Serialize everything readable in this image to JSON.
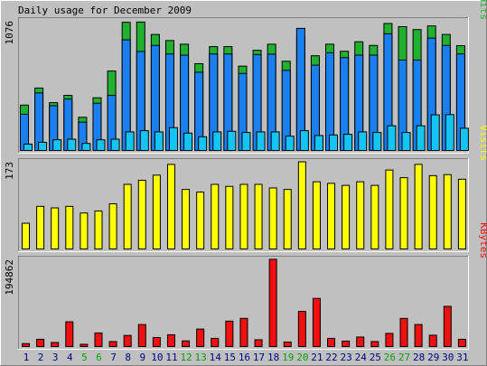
{
  "chart_data": {
    "type": "bar",
    "title": "Daily usage for December 2009",
    "categories": [
      "1",
      "2",
      "3",
      "4",
      "5",
      "6",
      "7",
      "8",
      "9",
      "10",
      "11",
      "12",
      "13",
      "14",
      "15",
      "16",
      "17",
      "18",
      "19",
      "20",
      "21",
      "22",
      "23",
      "24",
      "25",
      "26",
      "27",
      "28",
      "29",
      "30",
      "31"
    ],
    "weekend_days": [
      "5",
      "6",
      "12",
      "13",
      "19",
      "20",
      "26",
      "27"
    ],
    "colors": {
      "background": "#c0c0c0",
      "hits": "#22b02f",
      "files": "#1a80f0",
      "pages": "#14c4f4",
      "visits": "#ffff00",
      "kbytes": "#f01010",
      "weekday_label": "#000080",
      "weekend_label": "#00a000"
    },
    "panels": [
      {
        "name": "pages-files-hits",
        "ymax_label": "1076",
        "ylim": [
          0,
          1076
        ],
        "legend": [
          "Pages",
          "/",
          "Files",
          "/",
          "Hits"
        ],
        "legend_colors": [
          "#14c4f4",
          "#000000",
          "#1a80f0",
          "#000000",
          "#22b02f"
        ],
        "series": [
          {
            "name": "Hits",
            "values": [
              380,
              520,
              400,
              460,
              280,
              440,
              660,
              1060,
              1062,
              960,
              910,
              880,
              720,
              860,
              860,
              700,
              830,
              880,
              740,
              940,
              785,
              880,
              822,
              900,
              870,
              1050,
              1024,
              1000,
              1030,
              960,
              868
            ]
          },
          {
            "name": "Files",
            "values": [
              305,
              480,
              375,
              430,
              240,
              395,
              460,
              916,
              820,
              870,
              800,
              790,
              650,
              800,
              800,
              640,
              795,
              798,
              665,
              1010,
              708,
              810,
              770,
              790,
              790,
              966,
              750,
              750,
              930,
              870,
              800
            ]
          },
          {
            "name": "Pages",
            "values": [
              60,
              75,
              95,
              100,
              65,
              95,
              100,
              160,
              170,
              160,
              195,
              150,
              120,
              160,
              165,
              155,
              160,
              160,
              125,
              170,
              130,
              135,
              140,
              160,
              155,
              210,
              155,
              210,
              300,
              302,
              190
            ]
          }
        ]
      },
      {
        "name": "visits",
        "ymax_label": "173",
        "ylim": [
          0,
          173
        ],
        "legend": [
          "Visits"
        ],
        "legend_colors": [
          "#ffff00"
        ],
        "series": [
          {
            "name": "Visits",
            "values": [
              52,
              85,
              82,
              85,
              72,
              76,
              90,
              128,
              136,
              146,
              167,
              118,
              113,
              128,
              124,
              128,
              128,
              121,
              118,
              172,
              133,
              130,
              126,
              133,
              126,
              156,
              141,
              167,
              145,
              147,
              138
            ]
          }
        ]
      },
      {
        "name": "kbytes",
        "ymax_label": "194862",
        "ylim": [
          0,
          194862
        ],
        "legend": [
          "KBytes"
        ],
        "legend_colors": [
          "#f01010"
        ],
        "series": [
          {
            "name": "KBytes",
            "values": [
              8500,
              18000,
              11000,
              56500,
              7000,
              32000,
              13000,
              26500,
              50500,
              22000,
              28000,
              14500,
              40500,
              20000,
              58000,
              64000,
              17000,
              194000,
              12000,
              79500,
              108000,
              20000,
              14000,
              23000,
              13000,
              31000,
              64000,
              50500,
              27000,
              90500,
              18000
            ]
          }
        ]
      }
    ]
  }
}
